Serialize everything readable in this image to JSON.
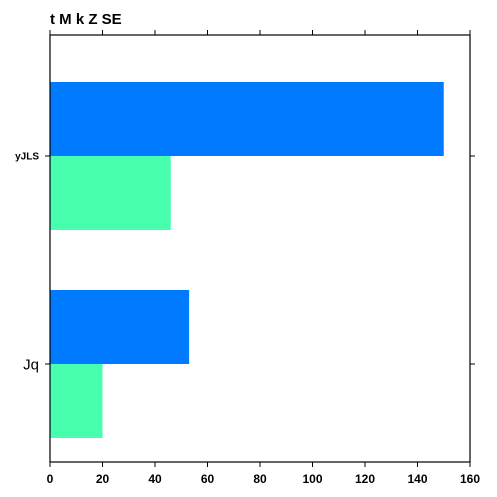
{
  "chart_data": {
    "type": "bar",
    "orientation": "horizontal",
    "title": "t M k Z SE",
    "xlabel": "",
    "ylabel": "",
    "categories": [
      "yJLS",
      "Jq"
    ],
    "series": [
      {
        "color": "#007bff",
        "values": [
          150,
          53
        ]
      },
      {
        "color": "#48ffb0",
        "values": [
          46,
          20
        ]
      }
    ],
    "xlim": [
      0,
      160
    ],
    "xticks": [
      "0",
      "20",
      "40",
      "60",
      "80",
      "100",
      "120",
      "140",
      "160"
    ],
    "grid": false,
    "legend": "none"
  }
}
